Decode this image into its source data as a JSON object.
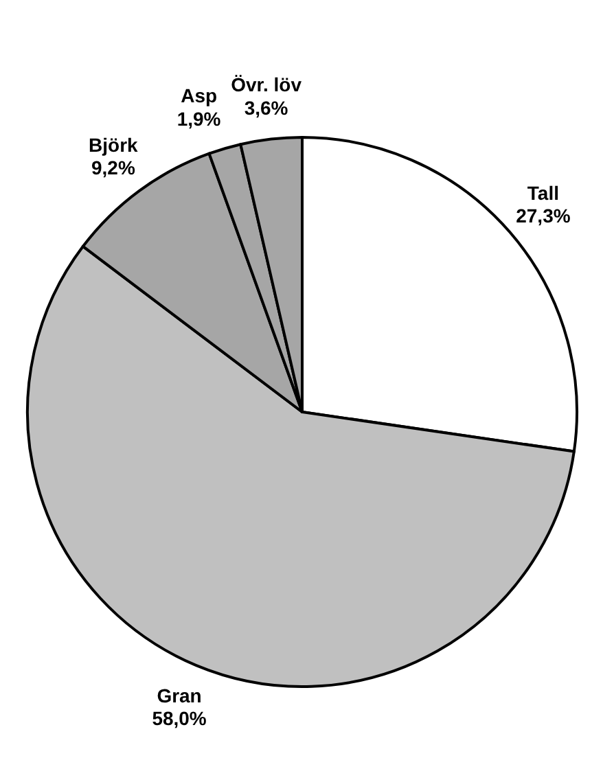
{
  "chart_data": {
    "type": "pie",
    "categories": [
      "Tall",
      "Gran",
      "Björk",
      "Asp",
      "Övr. löv"
    ],
    "values": [
      27.3,
      58.0,
      9.2,
      1.9,
      3.6
    ],
    "value_labels": [
      "27,3%",
      "58,0%",
      "9,2%",
      "1,9%",
      "3,6%"
    ],
    "colors": [
      "#ffffff",
      "#c0c0c0",
      "#a6a6a6",
      "#a6a6a6",
      "#a6a6a6"
    ]
  }
}
